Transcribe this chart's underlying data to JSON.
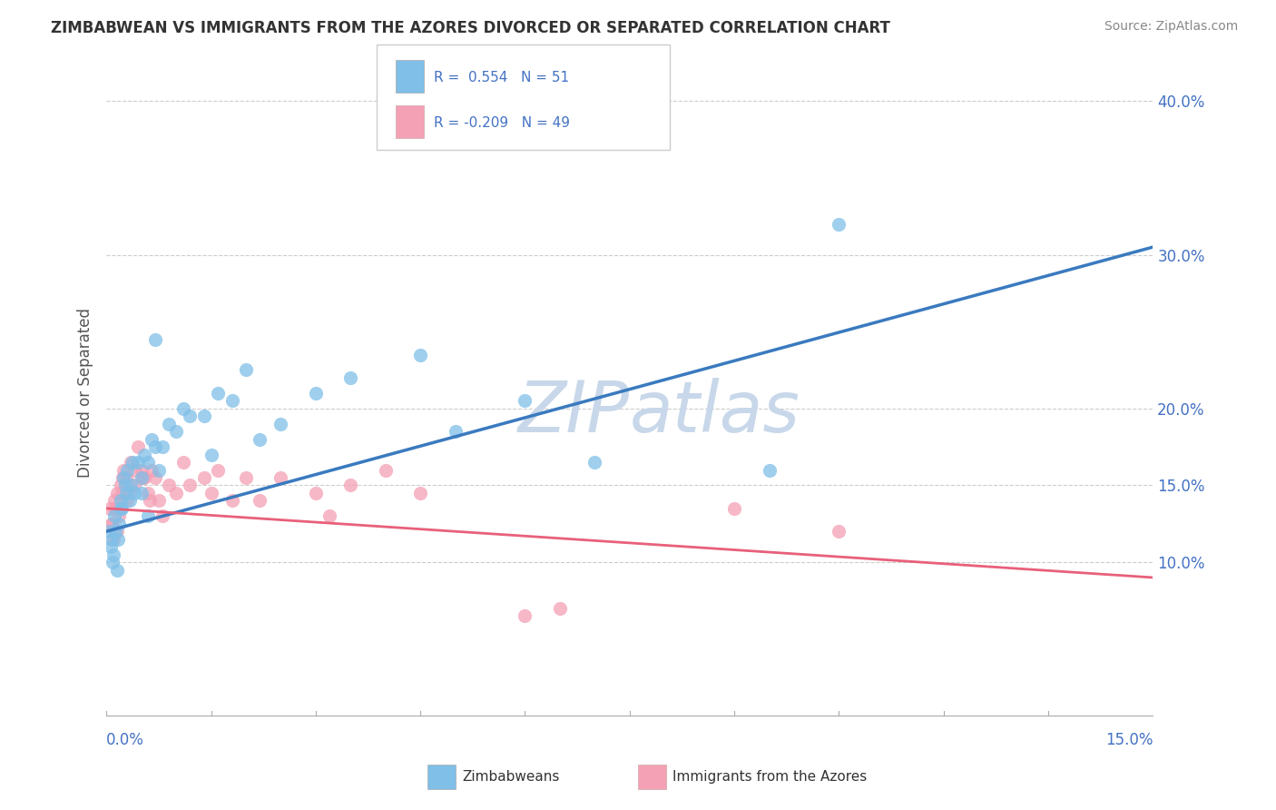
{
  "title": "ZIMBABWEAN VS IMMIGRANTS FROM THE AZORES DIVORCED OR SEPARATED CORRELATION CHART",
  "source": "Source: ZipAtlas.com",
  "ylabel": "Divorced or Separated",
  "xlim": [
    0.0,
    15.0
  ],
  "ylim": [
    0.0,
    42.0
  ],
  "y_ticks": [
    10.0,
    15.0,
    20.0,
    30.0,
    40.0
  ],
  "y_tick_labels": [
    "10.0%",
    "15.0%",
    "20.0%",
    "30.0%",
    "40.0%"
  ],
  "blue_color": "#7fbfe8",
  "pink_color": "#f4a0b5",
  "blue_line_color": "#3a7abf",
  "pink_line_color": "#e8607a",
  "grid_color": "#cccccc",
  "watermark_color": "#c8d8ea",
  "blue_line_x0": 0.0,
  "blue_line_y0": 12.0,
  "blue_line_x1": 15.0,
  "blue_line_y1": 30.5,
  "pink_line_x0": 0.0,
  "pink_line_y0": 13.5,
  "pink_line_x1": 15.0,
  "pink_line_y1": 9.0,
  "blue_scatter_x": [
    0.05,
    0.08,
    0.1,
    0.12,
    0.15,
    0.18,
    0.2,
    0.22,
    0.25,
    0.28,
    0.3,
    0.35,
    0.4,
    0.45,
    0.5,
    0.55,
    0.6,
    0.65,
    0.7,
    0.75,
    0.8,
    0.9,
    1.0,
    1.1,
    1.2,
    1.4,
    1.6,
    1.8,
    2.0,
    2.5,
    3.0,
    3.5,
    4.5,
    5.0,
    6.0,
    7.0,
    9.5,
    0.06,
    0.09,
    0.13,
    0.17,
    0.21,
    0.27,
    0.33,
    0.38,
    0.5,
    0.6,
    0.7,
    1.5,
    2.2,
    10.5
  ],
  "blue_scatter_y": [
    12.0,
    11.5,
    10.5,
    13.0,
    9.5,
    12.5,
    14.0,
    13.5,
    15.5,
    14.5,
    16.0,
    15.0,
    14.5,
    16.5,
    15.5,
    17.0,
    16.5,
    18.0,
    17.5,
    16.0,
    17.5,
    19.0,
    18.5,
    20.0,
    19.5,
    19.5,
    21.0,
    20.5,
    22.5,
    19.0,
    21.0,
    22.0,
    23.5,
    18.5,
    20.5,
    16.5,
    16.0,
    11.0,
    10.0,
    12.0,
    11.5,
    13.5,
    15.0,
    14.0,
    16.5,
    14.5,
    13.0,
    24.5,
    17.0,
    18.0,
    32.0
  ],
  "pink_scatter_x": [
    0.05,
    0.08,
    0.1,
    0.12,
    0.15,
    0.18,
    0.2,
    0.22,
    0.25,
    0.28,
    0.3,
    0.35,
    0.4,
    0.45,
    0.5,
    0.55,
    0.6,
    0.65,
    0.7,
    0.75,
    0.8,
    0.9,
    1.0,
    1.1,
    1.2,
    1.4,
    1.6,
    1.8,
    2.0,
    2.2,
    2.5,
    3.0,
    3.5,
    4.0,
    4.5,
    6.0,
    6.5,
    9.0,
    10.5,
    0.07,
    0.11,
    0.16,
    0.23,
    0.32,
    0.42,
    0.52,
    0.62,
    1.5,
    3.2
  ],
  "pink_scatter_y": [
    13.5,
    12.5,
    11.5,
    14.0,
    12.0,
    13.0,
    15.0,
    14.5,
    16.0,
    15.5,
    14.0,
    16.5,
    15.0,
    17.5,
    16.0,
    15.5,
    14.5,
    16.0,
    15.5,
    14.0,
    13.0,
    15.0,
    14.5,
    16.5,
    15.0,
    15.5,
    16.0,
    14.0,
    15.5,
    14.0,
    15.5,
    14.5,
    15.0,
    16.0,
    14.5,
    6.5,
    7.0,
    13.5,
    12.0,
    12.5,
    13.5,
    14.5,
    15.5,
    14.5,
    16.0,
    15.5,
    14.0,
    14.5,
    13.0
  ]
}
